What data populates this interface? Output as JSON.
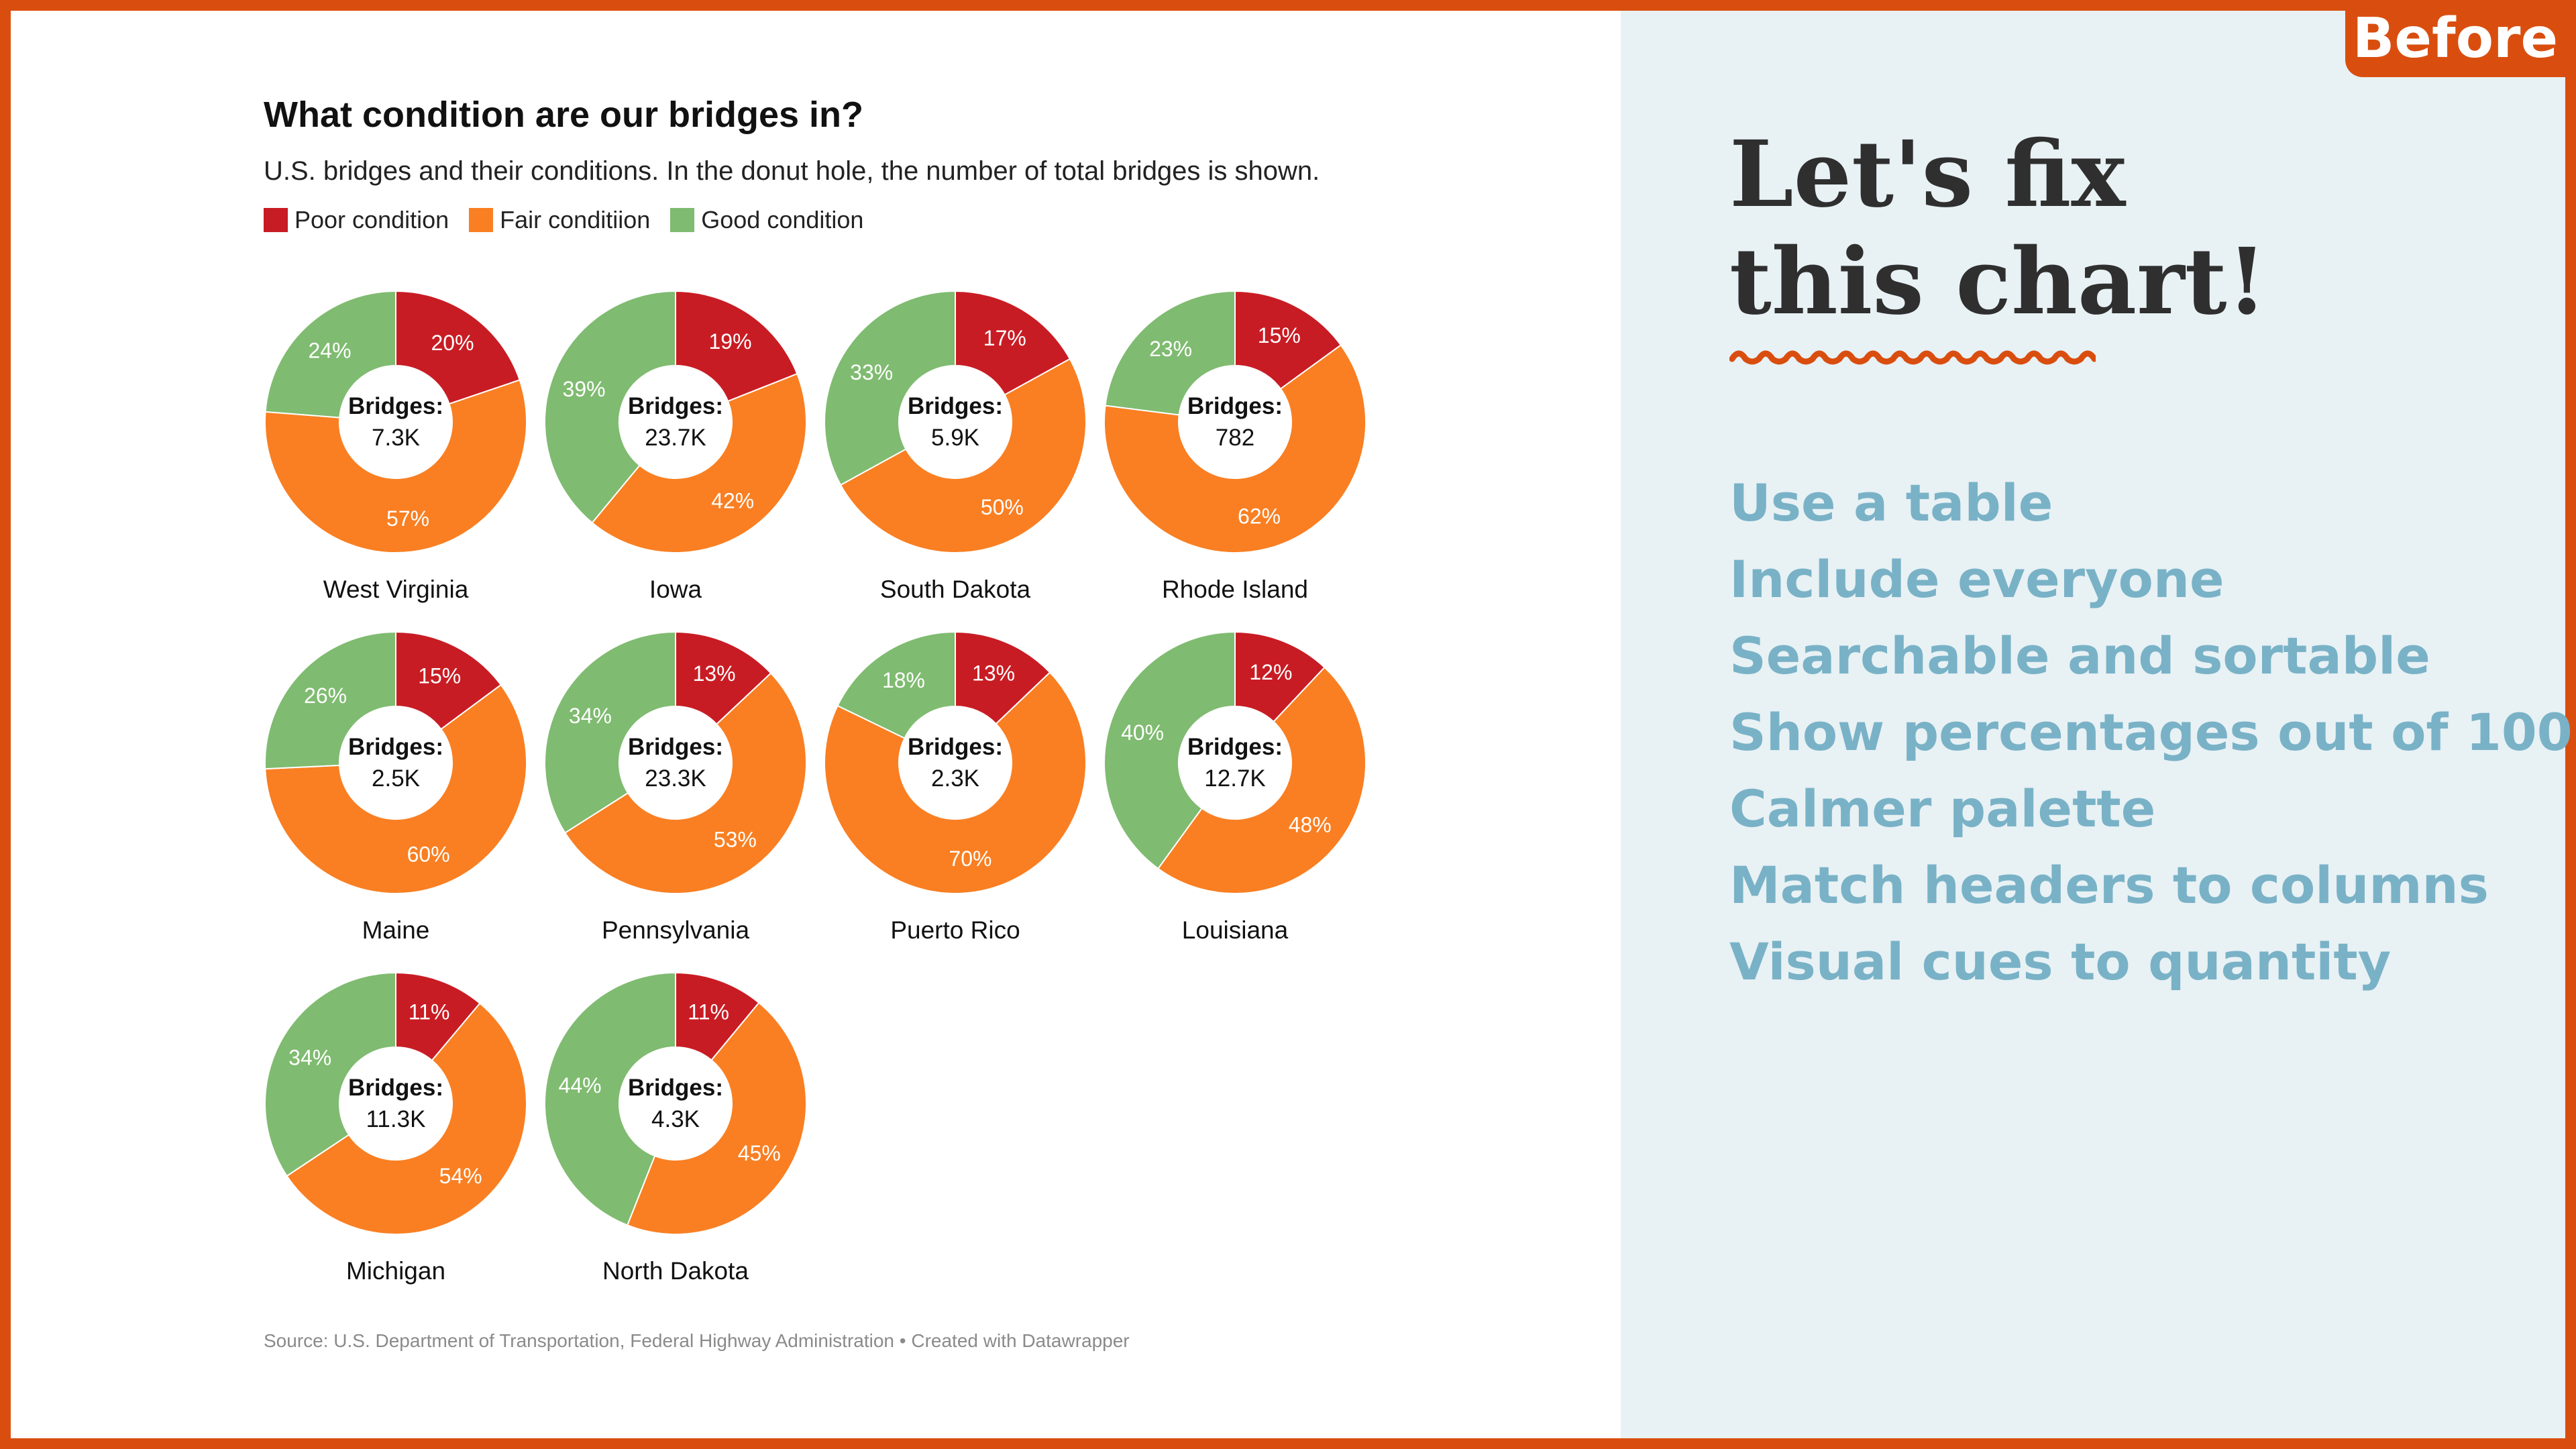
{
  "badge": "Before",
  "colors": {
    "poor": "#c81c24",
    "fair": "#f97f22",
    "good": "#7fbb70"
  },
  "chart_data": {
    "type": "pie",
    "title": "What condition are our bridges in?",
    "subtitle": "U.S. bridges and their conditions. In the donut hole, the number of total bridges is shown.",
    "legend": [
      "Poor condition",
      "Fair conditiion",
      "Good condition"
    ],
    "center_label": "Bridges:",
    "source": "Source: U.S. Department of Transportation, Federal Highway Administration • Created with Datawrapper",
    "charts": [
      {
        "name": "West Virginia",
        "total": "7.3K",
        "poor": 20,
        "fair": 57,
        "good": 24
      },
      {
        "name": "Iowa",
        "total": "23.7K",
        "poor": 19,
        "fair": 42,
        "good": 39
      },
      {
        "name": "South Dakota",
        "total": "5.9K",
        "poor": 17,
        "fair": 50,
        "good": 33
      },
      {
        "name": "Rhode Island",
        "total": "782",
        "poor": 15,
        "fair": 62,
        "good": 23
      },
      {
        "name": "Maine",
        "total": "2.5K",
        "poor": 15,
        "fair": 60,
        "good": 26
      },
      {
        "name": "Pennsylvania",
        "total": "23.3K",
        "poor": 13,
        "fair": 53,
        "good": 34
      },
      {
        "name": "Puerto Rico",
        "total": "2.3K",
        "poor": 13,
        "fair": 70,
        "good": 18
      },
      {
        "name": "Louisiana",
        "total": "12.7K",
        "poor": 12,
        "fair": 48,
        "good": 40
      },
      {
        "name": "Michigan",
        "total": "11.3K",
        "poor": 11,
        "fair": 54,
        "good": 34
      },
      {
        "name": "North Dakota",
        "total": "4.3K",
        "poor": 11,
        "fair": 45,
        "good": 44
      }
    ]
  },
  "panel": {
    "title_line1": "Let's fix",
    "title_line2": "this chart!",
    "tips": [
      "Use a table",
      "Include everyone",
      "Searchable and sortable",
      "Show percentages out of 100",
      "Calmer palette",
      "Match headers to columns",
      "Visual cues to quantity"
    ]
  }
}
